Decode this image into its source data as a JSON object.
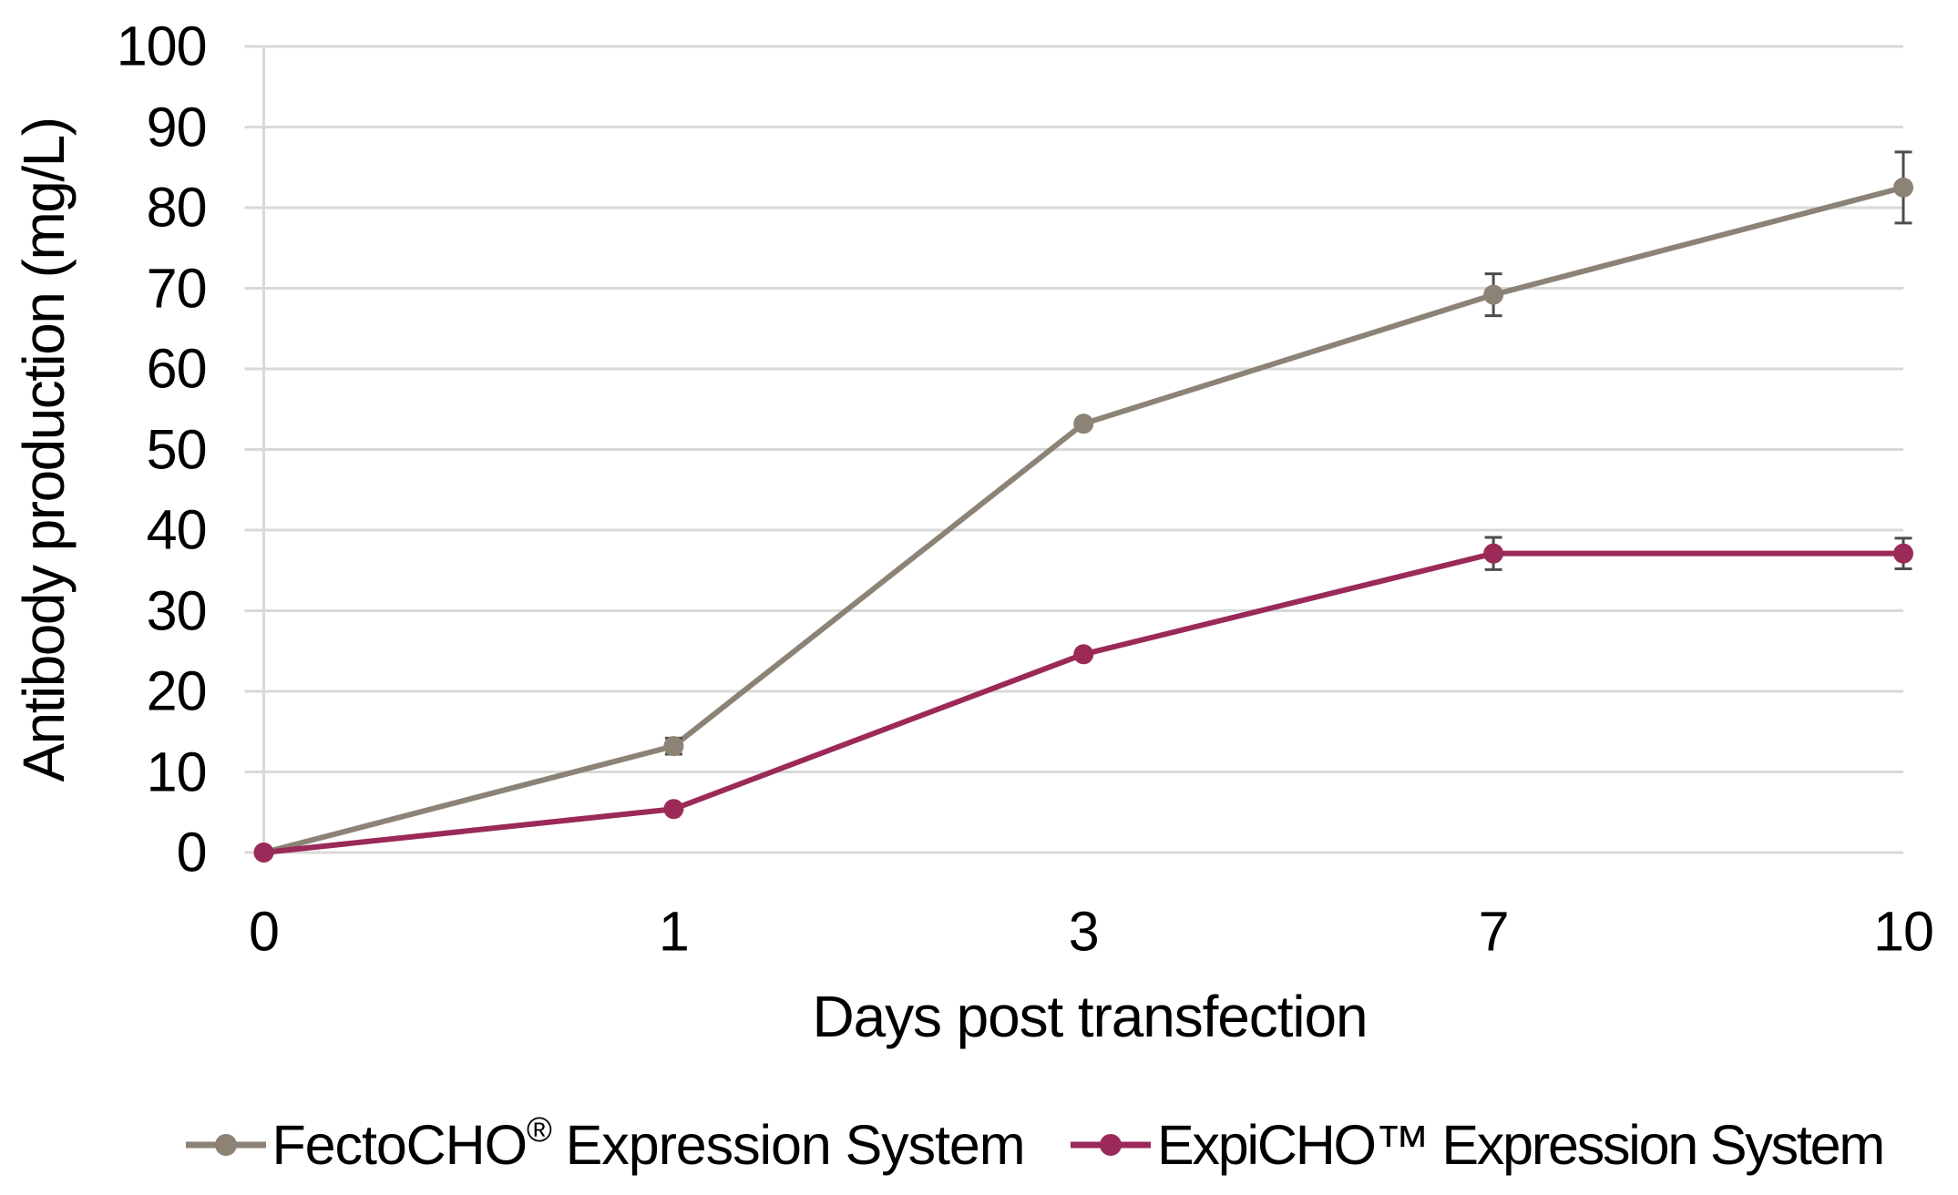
{
  "chart_data": {
    "type": "line",
    "title": "",
    "xlabel": "Days post transfection",
    "ylabel": "Antibody production (mg/L)",
    "categories": [
      "0",
      "1",
      "3",
      "7",
      "10"
    ],
    "y_ticks": [
      0,
      10,
      20,
      30,
      40,
      50,
      60,
      70,
      80,
      90,
      100
    ],
    "ylim": [
      0,
      100
    ],
    "grid": "horizontal-gridlines",
    "legend_position": "bottom",
    "series": [
      {
        "name": "FectoCHO® Expression System",
        "color": "#8C8276",
        "values": [
          0,
          13.2,
          53.2,
          69.2,
          82.5
        ],
        "errors": [
          0,
          1.0,
          0,
          2.6,
          4.4
        ]
      },
      {
        "name": "ExpiCHO™ Expression System",
        "color": "#9B2A58",
        "values": [
          0,
          5.4,
          24.6,
          37.1,
          37.1
        ],
        "errors": [
          0,
          0,
          0,
          2.0,
          1.9
        ]
      }
    ],
    "error_bar_color": "#4D4D4D",
    "gridline_color": "#D9D9D9",
    "axis_line_color": "#D9D9D9",
    "text_color": "#000000"
  }
}
